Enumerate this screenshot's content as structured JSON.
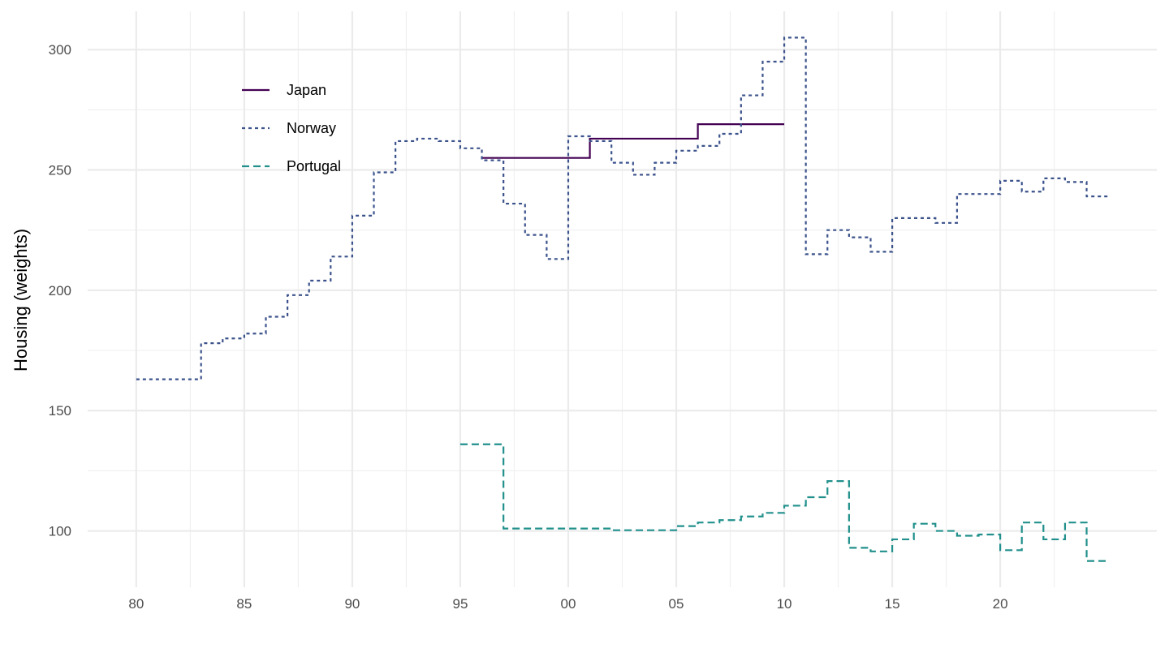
{
  "chart_data": {
    "type": "line",
    "step": true,
    "title": "",
    "xlabel": "",
    "ylabel": "Housing (weights)",
    "xlim": [
      1977.75,
      2027.25
    ],
    "ylim": [
      76.6,
      315.9
    ],
    "x_ticks": [
      1980,
      1985,
      1990,
      1995,
      2000,
      2005,
      2010,
      2015,
      2020
    ],
    "x_tick_labels": [
      "80",
      "85",
      "90",
      "95",
      "00",
      "05",
      "10",
      "15",
      "20"
    ],
    "y_ticks": [
      100,
      150,
      200,
      250,
      300
    ],
    "y_tick_labels": [
      "100",
      "150",
      "200",
      "250",
      "300"
    ],
    "grid": true,
    "legend_position": "top-left inside",
    "series": [
      {
        "name": "Japan",
        "color": "#440154",
        "dash": "solid",
        "x": [
          1996,
          1997,
          1998,
          1999,
          2000,
          2001,
          2002,
          2003,
          2004,
          2005,
          2006,
          2007,
          2008,
          2009
        ],
        "values": [
          255,
          255,
          255,
          255,
          255,
          263,
          263,
          263,
          263,
          263,
          269,
          269,
          269,
          269
        ]
      },
      {
        "name": "Norway",
        "color": "#3B528B",
        "dash": "dotted",
        "x": [
          1980,
          1981,
          1982,
          1983,
          1984,
          1985,
          1986,
          1987,
          1988,
          1989,
          1990,
          1991,
          1992,
          1993,
          1994,
          1995,
          1996,
          1997,
          1998,
          1999,
          2000,
          2001,
          2002,
          2003,
          2004,
          2005,
          2006,
          2007,
          2008,
          2009,
          2010,
          2011,
          2012,
          2013,
          2014,
          2015,
          2016,
          2017,
          2018,
          2019,
          2020,
          2021,
          2022,
          2023,
          2024
        ],
        "values": [
          163,
          163,
          163,
          178,
          180,
          182,
          189,
          198,
          204,
          214,
          231,
          249,
          262,
          263,
          262,
          259,
          254,
          236,
          223,
          213,
          264,
          262,
          253,
          248,
          253,
          258,
          260,
          265,
          281,
          295,
          305,
          215,
          225,
          222,
          216,
          230,
          230,
          228,
          240,
          240,
          245.5,
          241,
          246.5,
          245,
          239
        ]
      },
      {
        "name": "Portugal",
        "color": "#21908C",
        "dash": "dashed",
        "x": [
          1995,
          1996,
          1997,
          1998,
          1999,
          2000,
          2001,
          2002,
          2003,
          2004,
          2005,
          2006,
          2007,
          2008,
          2009,
          2010,
          2011,
          2012,
          2013,
          2014,
          2015,
          2016,
          2017,
          2018,
          2019,
          2020,
          2021,
          2022,
          2023,
          2024
        ],
        "values": [
          136,
          136,
          101,
          101,
          101,
          101,
          101,
          100.3,
          100.3,
          100.3,
          102,
          103.5,
          104.5,
          106,
          107.5,
          110.5,
          114,
          120.7,
          93,
          91.5,
          96.5,
          103,
          100,
          98,
          98.5,
          92,
          103.5,
          96.5,
          103.5,
          87.5
        ]
      }
    ]
  }
}
